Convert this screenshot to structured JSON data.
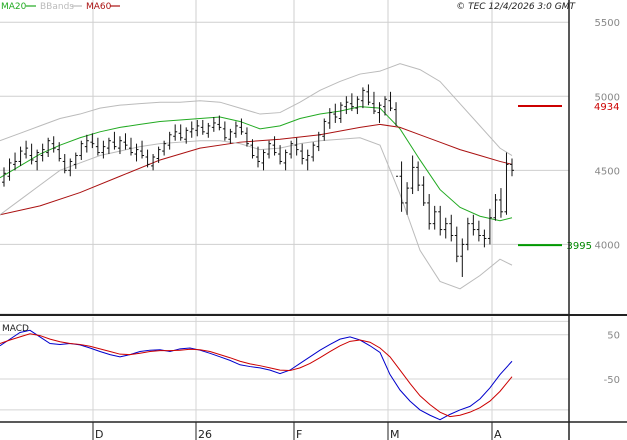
{
  "header": {
    "legend": [
      {
        "label": "MA20",
        "color": "#22aa22"
      },
      {
        "label": "BBands",
        "color": "#bbbbbb"
      },
      {
        "label": "MA60",
        "color": "#aa1111"
      }
    ],
    "copyright": "© TEC 12/4/2026 3:0 GMT"
  },
  "chart_data": [
    {
      "type": "ohlc",
      "x_labels": [
        "D",
        "26",
        "F",
        "M",
        "A"
      ],
      "y_ticks": [
        4000,
        4500,
        5000,
        5500
      ],
      "y_tick_labels": [
        "4000",
        "4500",
        "5000",
        "5500"
      ],
      "ylim": [
        3530,
        5650
      ],
      "grid": true,
      "levels": [
        {
          "label": "4934",
          "value": 4934,
          "color": "#cc0000"
        },
        {
          "label": "3995",
          "value": 3995,
          "color": "#009900"
        }
      ],
      "series": [
        {
          "name": "MA20",
          "color": "#22aa22",
          "x": [
            0,
            20,
            40,
            60,
            80,
            100,
            120,
            140,
            160,
            180,
            200,
            220,
            240,
            260,
            280,
            300,
            320,
            340,
            360,
            380,
            400,
            420,
            440,
            460,
            480,
            500,
            512
          ],
          "values": [
            4450,
            4530,
            4610,
            4670,
            4720,
            4760,
            4790,
            4810,
            4830,
            4840,
            4850,
            4860,
            4830,
            4780,
            4800,
            4850,
            4880,
            4900,
            4930,
            4920,
            4780,
            4570,
            4370,
            4250,
            4190,
            4160,
            4180
          ]
        },
        {
          "name": "MA60",
          "color": "#aa1111",
          "x": [
            0,
            40,
            80,
            120,
            160,
            200,
            240,
            280,
            320,
            360,
            380,
            400,
            420,
            440,
            460,
            480,
            500,
            512
          ],
          "values": [
            4200,
            4260,
            4350,
            4460,
            4570,
            4650,
            4690,
            4710,
            4740,
            4790,
            4810,
            4790,
            4740,
            4690,
            4640,
            4600,
            4560,
            4540
          ]
        },
        {
          "name": "BBands upper",
          "color": "#bbbbbb",
          "x": [
            0,
            20,
            40,
            60,
            80,
            100,
            120,
            140,
            160,
            180,
            200,
            220,
            240,
            260,
            280,
            300,
            320,
            340,
            360,
            380,
            400,
            420,
            440,
            460,
            480,
            500,
            512
          ],
          "values": [
            4700,
            4750,
            4800,
            4850,
            4880,
            4920,
            4940,
            4950,
            4960,
            4960,
            4970,
            4960,
            4920,
            4880,
            4890,
            4960,
            5040,
            5100,
            5150,
            5170,
            5220,
            5180,
            5100,
            4950,
            4800,
            4650,
            4600
          ]
        },
        {
          "name": "BBands lower",
          "color": "#bbbbbb",
          "x": [
            0,
            20,
            40,
            60,
            80,
            100,
            120,
            140,
            160,
            180,
            200,
            220,
            240,
            260,
            280,
            300,
            320,
            340,
            360,
            380,
            400,
            420,
            440,
            460,
            480,
            500,
            512
          ],
          "values": [
            4200,
            4300,
            4400,
            4500,
            4550,
            4600,
            4630,
            4660,
            4680,
            4690,
            4700,
            4700,
            4680,
            4640,
            4650,
            4680,
            4700,
            4710,
            4720,
            4670,
            4340,
            3960,
            3750,
            3700,
            3790,
            3900,
            3860
          ]
        }
      ],
      "bars": [
        [
          4420,
          4520,
          4390,
          4480
        ],
        [
          4460,
          4580,
          4430,
          4550
        ],
        [
          4540,
          4620,
          4500,
          4560
        ],
        [
          4560,
          4660,
          4530,
          4630
        ],
        [
          4610,
          4700,
          4580,
          4650
        ],
        [
          4600,
          4680,
          4540,
          4570
        ],
        [
          4560,
          4640,
          4500,
          4620
        ],
        [
          4600,
          4680,
          4560,
          4640
        ],
        [
          4620,
          4720,
          4590,
          4700
        ],
        [
          4680,
          4730,
          4620,
          4650
        ],
        [
          4640,
          4690,
          4560,
          4580
        ],
        [
          4560,
          4610,
          4480,
          4500
        ],
        [
          4500,
          4580,
          4460,
          4560
        ],
        [
          4540,
          4620,
          4510,
          4600
        ],
        [
          4600,
          4700,
          4570,
          4680
        ],
        [
          4660,
          4740,
          4620,
          4700
        ],
        [
          4690,
          4750,
          4650,
          4680
        ],
        [
          4660,
          4720,
          4600,
          4620
        ],
        [
          4620,
          4700,
          4580,
          4660
        ],
        [
          4650,
          4720,
          4610,
          4700
        ],
        [
          4690,
          4760,
          4640,
          4660
        ],
        [
          4650,
          4730,
          4610,
          4700
        ],
        [
          4690,
          4750,
          4640,
          4670
        ],
        [
          4650,
          4720,
          4600,
          4620
        ],
        [
          4610,
          4680,
          4560,
          4640
        ],
        [
          4630,
          4700,
          4580,
          4600
        ],
        [
          4590,
          4640,
          4520,
          4540
        ],
        [
          4530,
          4610,
          4500,
          4590
        ],
        [
          4580,
          4660,
          4550,
          4640
        ],
        [
          4630,
          4700,
          4600,
          4680
        ],
        [
          4670,
          4760,
          4640,
          4740
        ],
        [
          4730,
          4810,
          4700,
          4760
        ],
        [
          4750,
          4810,
          4700,
          4720
        ],
        [
          4710,
          4790,
          4680,
          4770
        ],
        [
          4760,
          4830,
          4720,
          4780
        ],
        [
          4770,
          4840,
          4730,
          4800
        ],
        [
          4790,
          4840,
          4740,
          4760
        ],
        [
          4750,
          4820,
          4720,
          4800
        ],
        [
          4790,
          4860,
          4760,
          4820
        ],
        [
          4810,
          4870,
          4770,
          4790
        ],
        [
          4780,
          4830,
          4700,
          4720
        ],
        [
          4710,
          4780,
          4680,
          4760
        ],
        [
          4750,
          4830,
          4720,
          4800
        ],
        [
          4790,
          4850,
          4740,
          4760
        ],
        [
          4750,
          4790,
          4660,
          4680
        ],
        [
          4670,
          4710,
          4580,
          4600
        ],
        [
          4590,
          4660,
          4520,
          4560
        ],
        [
          4550,
          4640,
          4500,
          4620
        ],
        [
          4610,
          4700,
          4580,
          4680
        ],
        [
          4670,
          4730,
          4600,
          4620
        ],
        [
          4610,
          4670,
          4540,
          4560
        ],
        [
          4550,
          4640,
          4500,
          4620
        ],
        [
          4610,
          4700,
          4580,
          4680
        ],
        [
          4670,
          4720,
          4600,
          4640
        ],
        [
          4630,
          4680,
          4540,
          4580
        ],
        [
          4570,
          4640,
          4500,
          4600
        ],
        [
          4590,
          4690,
          4560,
          4670
        ],
        [
          4660,
          4760,
          4630,
          4740
        ],
        [
          4730,
          4850,
          4700,
          4830
        ],
        [
          4820,
          4920,
          4780,
          4890
        ],
        [
          4880,
          4950,
          4820,
          4860
        ],
        [
          4850,
          4960,
          4820,
          4940
        ],
        [
          4930,
          5000,
          4880,
          4960
        ],
        [
          4950,
          5020,
          4900,
          4930
        ],
        [
          4920,
          5000,
          4880,
          4980
        ],
        [
          4970,
          5060,
          4920,
          5040
        ],
        [
          5030,
          5080,
          4940,
          4960
        ],
        [
          4950,
          5030,
          4880,
          4900
        ],
        [
          4890,
          4960,
          4820,
          4940
        ],
        [
          4930,
          5000,
          4870,
          4980
        ],
        [
          4970,
          5030,
          4900,
          4920
        ],
        [
          4910,
          4960,
          4800,
          4460
        ],
        [
          4460,
          4560,
          4220,
          4280
        ],
        [
          4280,
          4420,
          4200,
          4380
        ],
        [
          4380,
          4600,
          4340,
          4520
        ],
        [
          4520,
          4560,
          4360,
          4400
        ],
        [
          4400,
          4460,
          4260,
          4280
        ],
        [
          4280,
          4340,
          4100,
          4140
        ],
        [
          4140,
          4260,
          4100,
          4220
        ],
        [
          4220,
          4260,
          4060,
          4100
        ],
        [
          4100,
          4180,
          4040,
          4140
        ],
        [
          4140,
          4200,
          4020,
          4060
        ],
        [
          4060,
          4120,
          3880,
          3920
        ],
        [
          3920,
          4040,
          3780,
          4000
        ],
        [
          4000,
          4180,
          3960,
          4140
        ],
        [
          4140,
          4200,
          4060,
          4100
        ],
        [
          4100,
          4160,
          4020,
          4060
        ],
        [
          4060,
          4100,
          3980,
          4040
        ],
        [
          4040,
          4240,
          4000,
          4180
        ],
        [
          4180,
          4340,
          4160,
          4300
        ],
        [
          4300,
          4380,
          4180,
          4220
        ],
        [
          4220,
          4620,
          4200,
          4540
        ],
        [
          4540,
          4580,
          4460,
          4500
        ]
      ]
    },
    {
      "type": "line",
      "title": "MACD",
      "y_ticks": [
        50,
        -50
      ],
      "y_tick_labels": [
        "50",
        "-50"
      ],
      "ylim": [
        -145,
        90
      ],
      "series": [
        {
          "name": "MACD",
          "color": "#0000cc",
          "x": [
            0,
            10,
            20,
            30,
            40,
            50,
            60,
            70,
            80,
            90,
            100,
            110,
            120,
            130,
            140,
            150,
            160,
            170,
            180,
            190,
            200,
            210,
            220,
            230,
            240,
            250,
            260,
            270,
            280,
            290,
            300,
            310,
            320,
            330,
            340,
            350,
            360,
            370,
            380,
            390,
            400,
            410,
            420,
            430,
            440,
            450,
            460,
            470,
            480,
            490,
            500,
            512
          ],
          "values": [
            25,
            40,
            55,
            60,
            45,
            30,
            28,
            30,
            27,
            20,
            12,
            5,
            0,
            5,
            12,
            15,
            16,
            12,
            18,
            20,
            15,
            8,
            0,
            -8,
            -18,
            -22,
            -25,
            -30,
            -38,
            -30,
            -15,
            0,
            15,
            28,
            40,
            45,
            38,
            25,
            10,
            -40,
            -75,
            -100,
            -120,
            -132,
            -142,
            -130,
            -120,
            -112,
            -95,
            -70,
            -40,
            -10
          ]
        },
        {
          "name": "Signal",
          "color": "#cc0000",
          "x": [
            0,
            10,
            20,
            30,
            40,
            50,
            60,
            70,
            80,
            90,
            100,
            110,
            120,
            130,
            140,
            150,
            160,
            170,
            180,
            190,
            200,
            210,
            220,
            230,
            240,
            250,
            260,
            270,
            280,
            290,
            300,
            310,
            320,
            330,
            340,
            350,
            360,
            370,
            380,
            390,
            400,
            410,
            420,
            430,
            440,
            450,
            460,
            470,
            480,
            490,
            500,
            512
          ],
          "values": [
            30,
            38,
            45,
            52,
            48,
            40,
            34,
            30,
            28,
            24,
            18,
            12,
            6,
            5,
            8,
            12,
            14,
            14,
            15,
            17,
            16,
            12,
            5,
            -2,
            -10,
            -16,
            -20,
            -25,
            -30,
            -31,
            -25,
            -15,
            -2,
            12,
            25,
            35,
            38,
            33,
            20,
            0,
            -30,
            -60,
            -88,
            -108,
            -125,
            -135,
            -132,
            -125,
            -115,
            -100,
            -78,
            -45
          ]
        }
      ]
    }
  ]
}
